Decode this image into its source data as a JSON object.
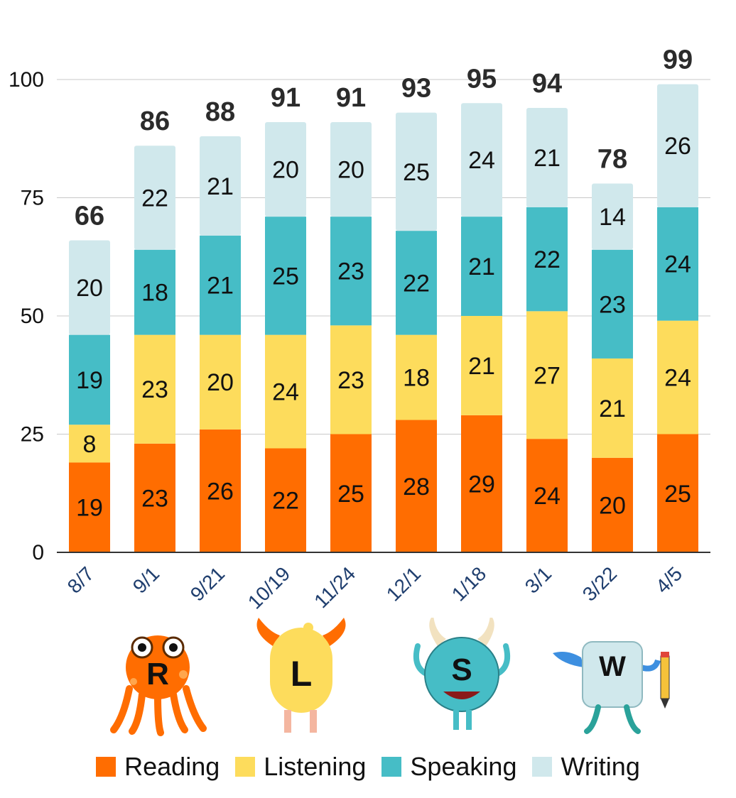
{
  "chart_data": {
    "type": "bar",
    "stacked": true,
    "categories": [
      "8/7",
      "9/1",
      "9/21",
      "10/19",
      "11/24",
      "12/1",
      "1/18",
      "3/1",
      "3/22",
      "4/5"
    ],
    "series": [
      {
        "name": "Reading",
        "color": "#ff6d01",
        "values": [
          19,
          23,
          26,
          22,
          25,
          28,
          29,
          24,
          20,
          25
        ]
      },
      {
        "name": "Listening",
        "color": "#fddc5c",
        "values": [
          8,
          23,
          20,
          24,
          23,
          18,
          21,
          27,
          21,
          24
        ]
      },
      {
        "name": "Speaking",
        "color": "#46bdc6",
        "values": [
          19,
          18,
          21,
          25,
          23,
          22,
          21,
          22,
          23,
          24
        ]
      },
      {
        "name": "Writing",
        "color": "#d0e8ec",
        "values": [
          20,
          22,
          21,
          20,
          20,
          25,
          24,
          21,
          14,
          26
        ]
      }
    ],
    "totals": [
      66,
      86,
      88,
      91,
      91,
      93,
      95,
      94,
      78,
      99
    ],
    "ylim": [
      0,
      100
    ],
    "yticks": [
      0,
      25,
      50,
      75,
      100
    ],
    "title": "",
    "xlabel": "",
    "ylabel": "",
    "legend_position": "bottom"
  },
  "mascots": [
    {
      "letter": "R",
      "icon": "orange-octopus-monster-icon"
    },
    {
      "letter": "L",
      "icon": "yellow-horned-monster-icon"
    },
    {
      "letter": "S",
      "icon": "teal-round-monster-icon"
    },
    {
      "letter": "W",
      "icon": "blue-pencil-monster-icon"
    }
  ],
  "legend": {
    "items": [
      {
        "label": "Reading",
        "color": "#ff6d01"
      },
      {
        "label": "Listening",
        "color": "#fddc5c"
      },
      {
        "label": "Speaking",
        "color": "#46bdc6"
      },
      {
        "label": "Writing",
        "color": "#d0e8ec"
      }
    ]
  }
}
